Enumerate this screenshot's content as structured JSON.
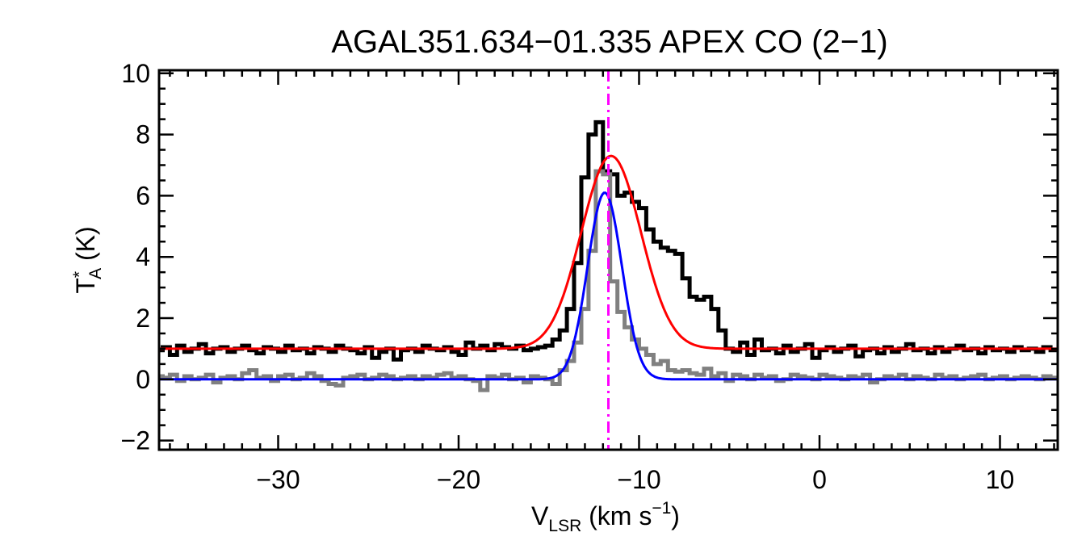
{
  "chart_data": {
    "type": "line",
    "title": "AGAL351.634−01.335  APEX CO (2−1)",
    "xlabel": {
      "main": "V",
      "sub": "LSR",
      "unit": " (km s",
      "sup": "−1",
      "close": ")"
    },
    "ylabel": {
      "main": "T",
      "sup": "*",
      "sub": "A",
      "unit": " (K)"
    },
    "xlim": [
      -36.6,
      13.2
    ],
    "ylim": [
      -2.3,
      10.1
    ],
    "xticks": [
      {
        "value": -30,
        "label": "−30"
      },
      {
        "value": -20,
        "label": "−20"
      },
      {
        "value": -10,
        "label": "−10"
      },
      {
        "value": 0,
        "label": "0"
      },
      {
        "value": 10,
        "label": "10"
      }
    ],
    "yticks": [
      {
        "value": -2,
        "label": "−2"
      },
      {
        "value": 0,
        "label": "0"
      },
      {
        "value": 2,
        "label": "2"
      },
      {
        "value": 4,
        "label": "4"
      },
      {
        "value": 6,
        "label": "6"
      },
      {
        "value": 8,
        "label": "8"
      },
      {
        "value": 10,
        "label": "10"
      }
    ],
    "vline": {
      "x": -11.7,
      "color": "#ff00ff",
      "style": "dash-dot"
    },
    "step_series": [
      {
        "color": "#000000",
        "x": [
          -36.6,
          -36.2,
          -35.8,
          -35.4,
          -35.0,
          -34.6,
          -34.2,
          -33.8,
          -33.4,
          -33.0,
          -32.6,
          -32.2,
          -31.8,
          -31.4,
          -31.0,
          -30.6,
          -30.2,
          -29.8,
          -29.4,
          -29.0,
          -28.6,
          -28.2,
          -27.8,
          -27.4,
          -27.0,
          -26.6,
          -26.2,
          -25.8,
          -25.4,
          -25.0,
          -24.6,
          -24.2,
          -23.8,
          -23.4,
          -23.0,
          -22.6,
          -22.2,
          -21.8,
          -21.4,
          -21.0,
          -20.6,
          -20.2,
          -19.8,
          -19.4,
          -19.0,
          -18.6,
          -18.2,
          -17.8,
          -17.4,
          -17.0,
          -16.6,
          -16.2,
          -15.8,
          -15.4,
          -15.0,
          -14.6,
          -14.2,
          -13.8,
          -13.4,
          -13.0,
          -12.6,
          -12.2,
          -11.8,
          -11.4,
          -11.0,
          -10.6,
          -10.2,
          -9.8,
          -9.4,
          -9.0,
          -8.6,
          -8.2,
          -7.8,
          -7.4,
          -7.0,
          -6.6,
          -6.2,
          -5.8,
          -5.4,
          -5.0,
          -4.6,
          -4.2,
          -3.8,
          -3.4,
          -3.0,
          -2.6,
          -2.2,
          -1.8,
          -1.4,
          -1.0,
          -0.6,
          -0.2,
          0.2,
          0.6,
          1.0,
          1.4,
          1.8,
          2.2,
          2.6,
          3.0,
          3.4,
          3.8,
          4.2,
          4.6,
          5.0,
          5.4,
          5.8,
          6.2,
          6.6,
          7.0,
          7.4,
          7.8,
          8.2,
          8.6,
          9.0,
          9.4,
          9.8,
          10.2,
          10.6,
          11.0,
          11.4,
          11.8,
          12.2,
          12.6,
          13.0
        ],
        "y": [
          0.95,
          1.05,
          0.8,
          1.1,
          0.9,
          1.0,
          1.15,
          0.85,
          1.0,
          1.05,
          0.9,
          1.0,
          1.1,
          0.95,
          0.85,
          1.05,
          1.0,
          0.9,
          1.1,
          0.95,
          1.0,
          0.85,
          1.05,
          1.0,
          0.9,
          1.1,
          1.0,
          0.95,
          0.85,
          1.05,
          0.7,
          0.9,
          1.0,
          0.65,
          0.95,
          1.0,
          0.9,
          1.1,
          1.0,
          0.95,
          1.05,
          0.9,
          0.8,
          1.2,
          1.0,
          1.1,
          0.95,
          1.15,
          1.05,
          1.0,
          1.1,
          0.95,
          1.0,
          1.05,
          1.1,
          1.3,
          1.6,
          2.3,
          3.8,
          6.6,
          8.0,
          8.4,
          6.8,
          6.7,
          6.0,
          6.1,
          5.8,
          5.6,
          4.9,
          4.5,
          4.3,
          4.2,
          4.1,
          3.3,
          2.7,
          2.6,
          2.7,
          2.3,
          1.6,
          1.0,
          0.9,
          1.2,
          0.8,
          1.3,
          0.95,
          1.0,
          0.85,
          1.1,
          0.9,
          1.0,
          1.15,
          0.7,
          0.95,
          1.05,
          0.9,
          1.0,
          1.1,
          0.75,
          0.95,
          1.0,
          0.85,
          1.05,
          0.9,
          1.0,
          1.15,
          0.95,
          1.0,
          0.85,
          1.05,
          0.9,
          1.0,
          1.1,
          0.95,
          1.0,
          0.85,
          1.05,
          0.95,
          1.0,
          0.9,
          1.05,
          0.95,
          1.0,
          0.9,
          1.05,
          0.95
        ]
      },
      {
        "color": "#808080",
        "x": [
          -36.6,
          -36.2,
          -35.8,
          -35.4,
          -35.0,
          -34.6,
          -34.2,
          -33.8,
          -33.4,
          -33.0,
          -32.6,
          -32.2,
          -31.8,
          -31.4,
          -31.0,
          -30.6,
          -30.2,
          -29.8,
          -29.4,
          -29.0,
          -28.6,
          -28.2,
          -27.8,
          -27.4,
          -27.0,
          -26.6,
          -26.2,
          -25.8,
          -25.4,
          -25.0,
          -24.6,
          -24.2,
          -23.8,
          -23.4,
          -23.0,
          -22.6,
          -22.2,
          -21.8,
          -21.4,
          -21.0,
          -20.6,
          -20.2,
          -19.8,
          -19.4,
          -19.0,
          -18.6,
          -18.2,
          -17.8,
          -17.4,
          -17.0,
          -16.6,
          -16.2,
          -15.8,
          -15.4,
          -15.0,
          -14.6,
          -14.2,
          -13.8,
          -13.4,
          -13.0,
          -12.6,
          -12.2,
          -11.8,
          -11.4,
          -11.0,
          -10.6,
          -10.2,
          -9.8,
          -9.4,
          -9.0,
          -8.6,
          -8.2,
          -7.8,
          -7.4,
          -7.0,
          -6.6,
          -6.2,
          -5.8,
          -5.4,
          -5.0,
          -4.6,
          -4.2,
          -3.8,
          -3.4,
          -3.0,
          -2.6,
          -2.2,
          -1.8,
          -1.4,
          -1.0,
          -0.6,
          -0.2,
          0.2,
          0.6,
          1.0,
          1.4,
          1.8,
          2.2,
          2.6,
          3.0,
          3.4,
          3.8,
          4.2,
          4.6,
          5.0,
          5.4,
          5.8,
          6.2,
          6.6,
          7.0,
          7.4,
          7.8,
          8.2,
          8.6,
          9.0,
          9.4,
          9.8,
          10.2,
          10.6,
          11.0,
          11.4,
          11.8,
          12.2,
          12.6,
          13.0
        ],
        "y": [
          0.1,
          0.05,
          0.15,
          -0.05,
          0.1,
          0.0,
          0.05,
          0.15,
          -0.1,
          0.05,
          0.1,
          0.0,
          0.2,
          0.3,
          0.05,
          0.1,
          -0.05,
          0.1,
          0.15,
          0.0,
          0.05,
          0.2,
          0.1,
          -0.05,
          -0.15,
          -0.2,
          0.05,
          0.1,
          0.15,
          0.0,
          0.05,
          0.15,
          0.1,
          0.0,
          0.05,
          0.1,
          0.0,
          0.1,
          0.05,
          0.15,
          0.2,
          0.05,
          0.1,
          0.0,
          -0.05,
          -0.35,
          0.1,
          0.05,
          0.15,
          0.0,
          0.05,
          -0.1,
          0.1,
          0.05,
          0.0,
          -0.15,
          0.3,
          0.6,
          1.2,
          2.3,
          4.2,
          6.8,
          6.7,
          3.2,
          2.2,
          1.7,
          1.3,
          1.0,
          0.8,
          0.5,
          0.6,
          0.3,
          0.25,
          0.3,
          0.2,
          0.15,
          0.35,
          0.1,
          0.2,
          -0.05,
          0.15,
          0.1,
          0.0,
          0.15,
          0.05,
          0.1,
          -0.05,
          0.0,
          0.15,
          0.1,
          0.05,
          0.0,
          0.15,
          0.1,
          0.05,
          0.0,
          0.1,
          0.05,
          0.15,
          -0.1,
          0.0,
          0.1,
          0.05,
          0.15,
          0.0,
          0.1,
          0.05,
          0.0,
          0.15,
          0.05,
          0.1,
          0.0,
          0.05,
          0.1,
          0.15,
          0.0,
          0.05,
          0.1,
          0.0,
          0.05,
          0.1,
          0.05,
          0.0,
          0.1,
          0.05
        ]
      }
    ],
    "gaussians": [
      {
        "color": "#ff0000",
        "base": 1.0,
        "amplitude": 6.3,
        "center": -11.55,
        "sigma": 1.65
      },
      {
        "color": "#0000ff",
        "base": 0.0,
        "amplitude": 6.1,
        "center": -11.9,
        "sigma": 0.95
      }
    ]
  }
}
